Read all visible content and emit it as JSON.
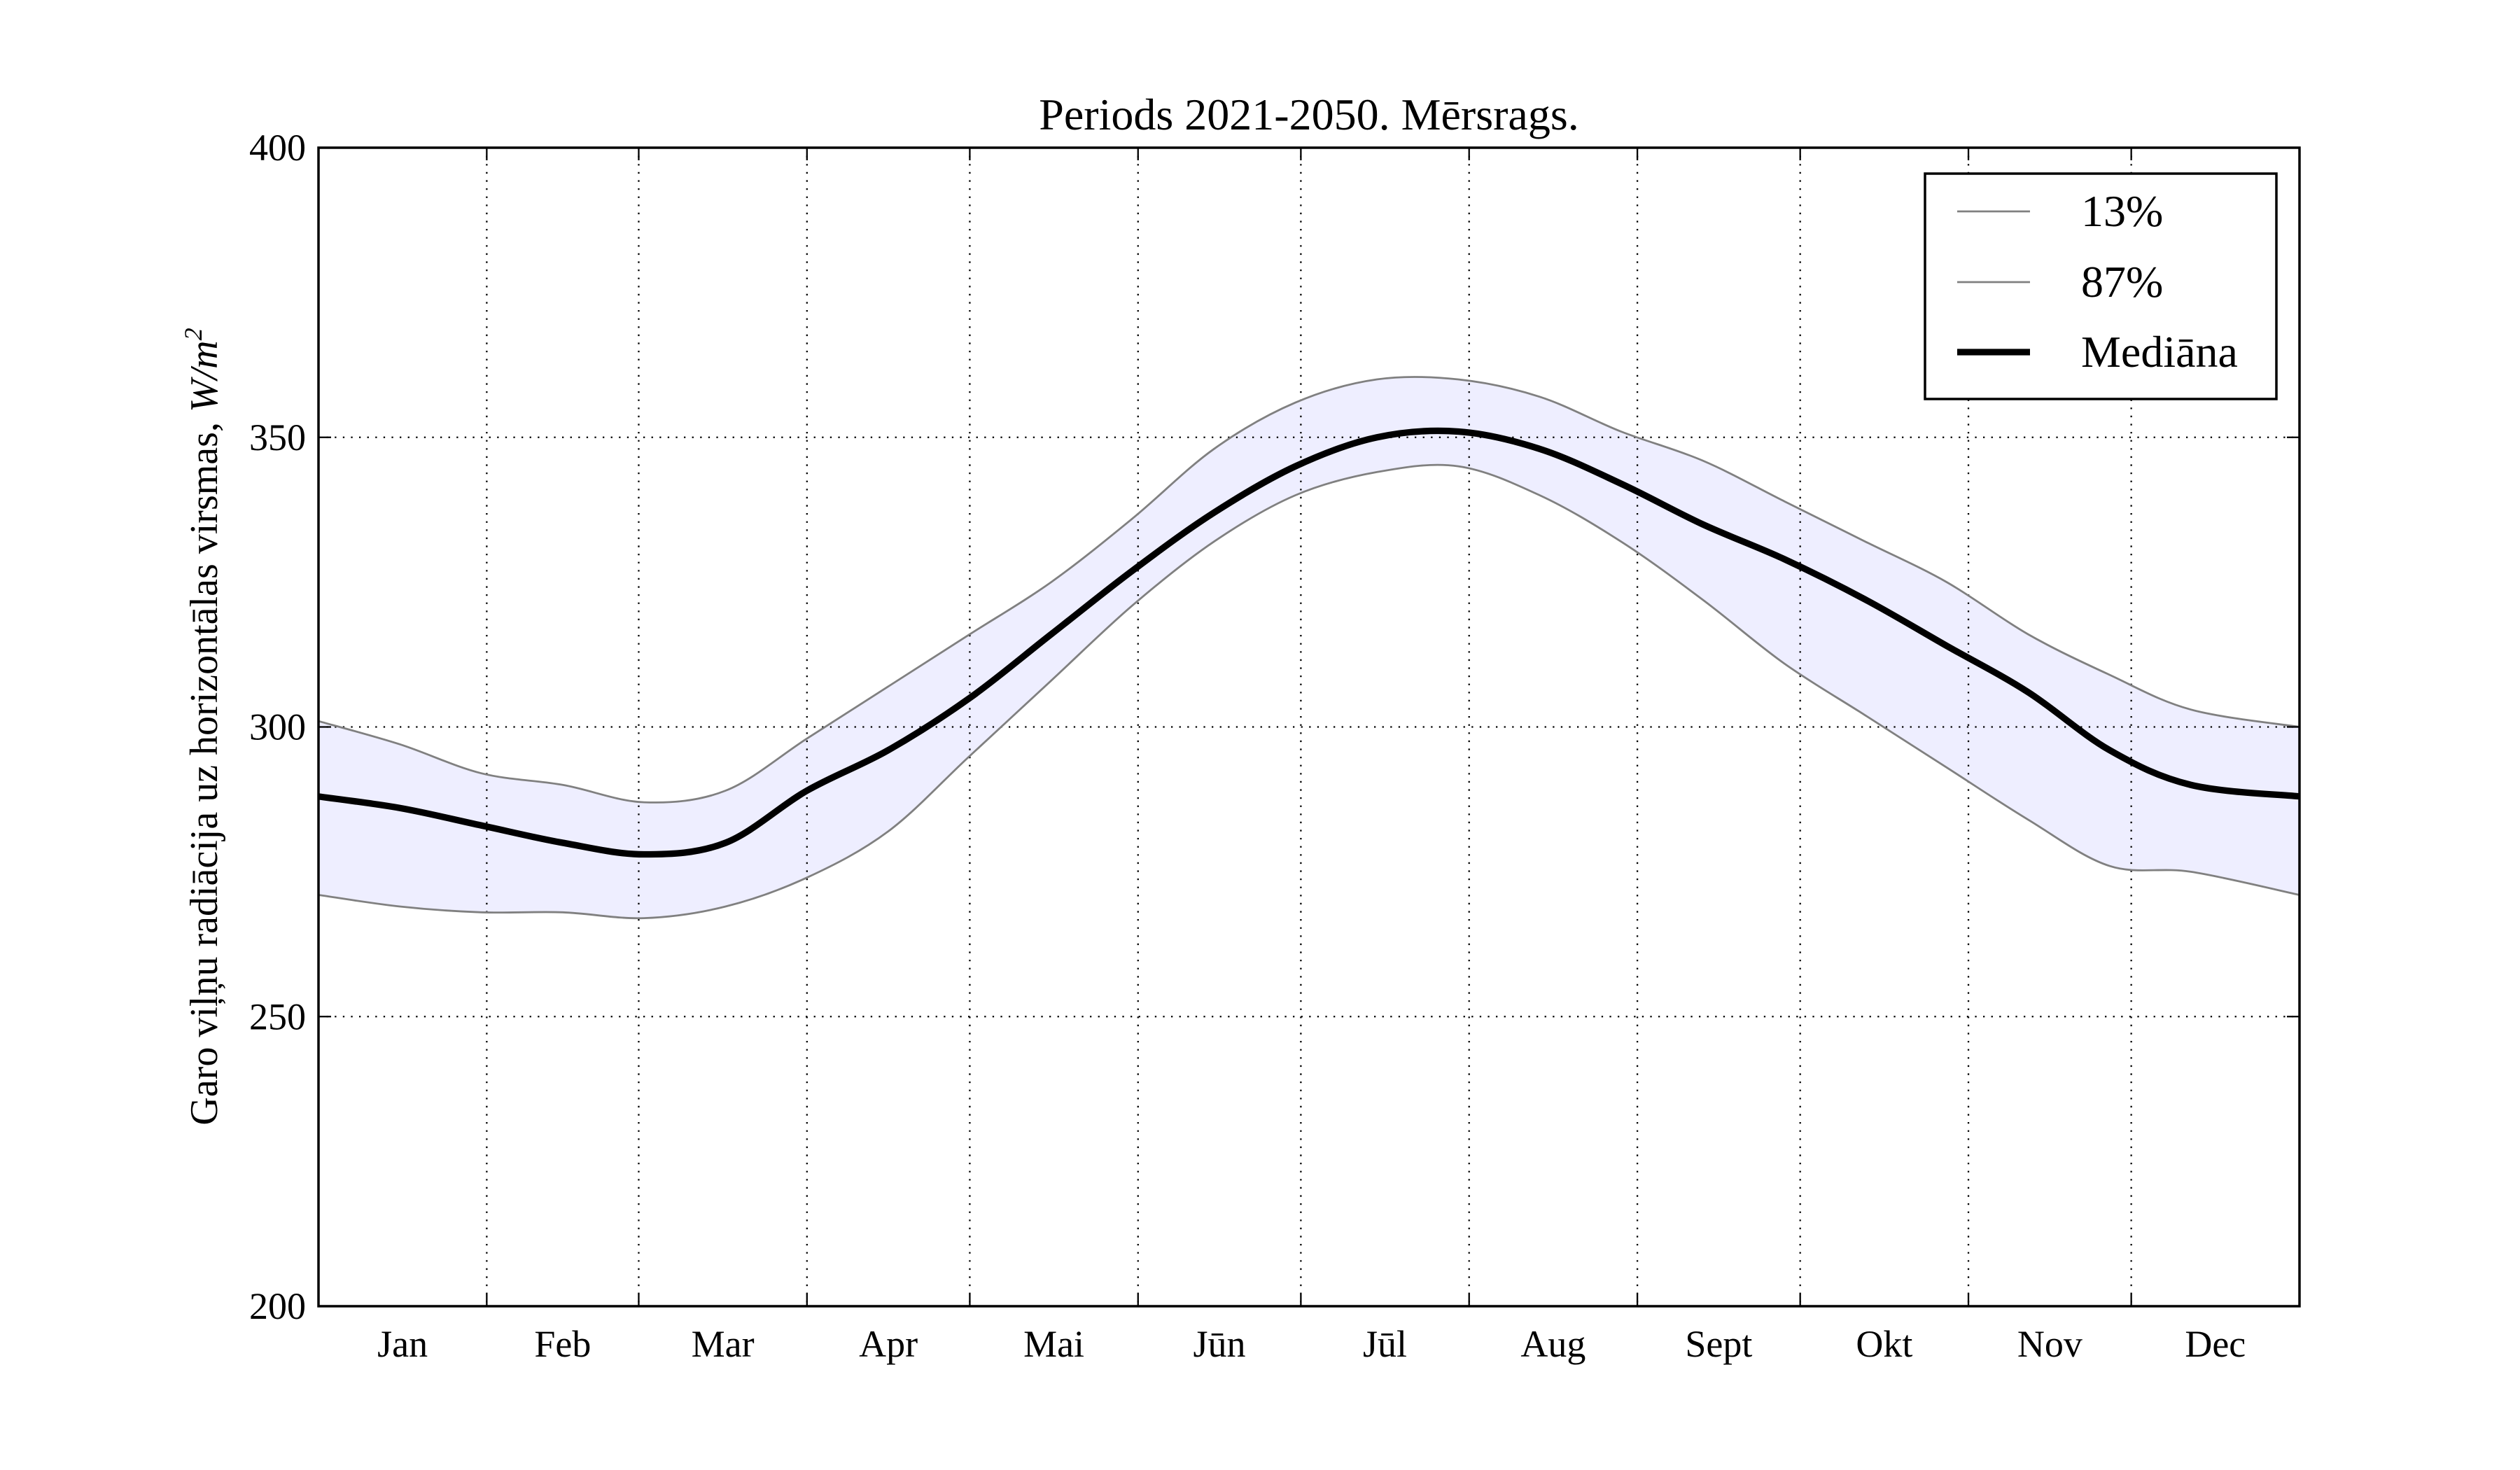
{
  "chart_data": {
    "type": "line",
    "title": "Periods 2021-2050. Mērsrags.",
    "ylabel": "Garo viļņu radiācija uz horizontālas virsmas, W/m²",
    "ylabel_parts": {
      "text": "Garo viļņu radiācija uz horizontālas virsmas, ",
      "unit_base": "W/m",
      "unit_exp": "2"
    },
    "xlabel": "",
    "ylim": [
      200,
      400
    ],
    "yticks": [
      "200",
      "250",
      "300",
      "350",
      "400"
    ],
    "xlim": [
      0,
      365
    ],
    "month_labels": [
      "Jan",
      "Feb",
      "Mar",
      "Apr",
      "Mai",
      "Jūn",
      "Jūl",
      "Aug",
      "Sept",
      "Okt",
      "Nov",
      "Dec"
    ],
    "grid": true,
    "legend_position": "top-right",
    "band_fill": "#eeeeff",
    "x": [
      0,
      15,
      30,
      45,
      60,
      75,
      90,
      105,
      120,
      135,
      150,
      165,
      180,
      195,
      210,
      225,
      240,
      255,
      270,
      285,
      300,
      315,
      330,
      345,
      365
    ],
    "series": [
      {
        "name": "13%",
        "color": "#808080",
        "values": [
          271,
          269,
          268,
          268,
          267,
          269,
          274,
          282,
          295,
          308,
          321,
          332,
          340,
          344,
          345,
          340,
          332,
          322,
          311,
          302,
          293,
          284,
          276,
          275,
          271
        ]
      },
      {
        "name": "87%",
        "color": "#808080",
        "values": [
          301,
          297,
          292,
          290,
          287,
          289,
          298,
          307,
          316,
          325,
          336,
          348,
          356,
          360,
          360,
          357,
          351,
          346,
          339,
          332,
          325,
          316,
          309,
          303,
          300
        ]
      },
      {
        "name": "Mediāna",
        "color": "#000000",
        "values": [
          288,
          286,
          283,
          280,
          278,
          280,
          289,
          296,
          305,
          316,
          327,
          337,
          345,
          350,
          351,
          348,
          342,
          335,
          329,
          322,
          314,
          306,
          296,
          290,
          288
        ]
      }
    ]
  }
}
